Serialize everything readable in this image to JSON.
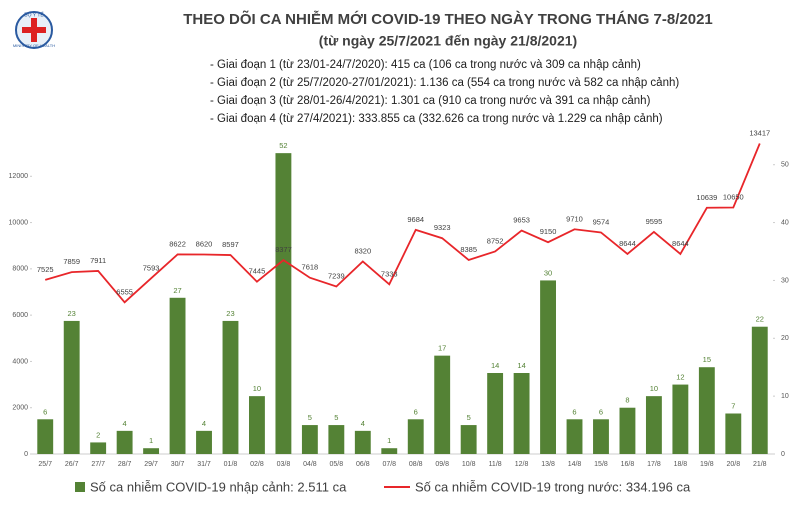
{
  "logo": {
    "top": "BỘ Y TẾ",
    "bottom": "MINISTRY OF HEALTH"
  },
  "chart_data": {
    "type": "combo",
    "title": "THEO DÕI CA NHIỄM MỚI COVID-19 THEO NGÀY TRONG THÁNG 7-8/2021",
    "subtitle": "(từ ngày 25/7/2021 đến ngày 21/8/2021)",
    "annotations": [
      "- Giai đoạn 1 (từ 23/01-24/7/2020): 415 ca (106 ca trong nước và 309 ca nhập cảnh)",
      "- Giai đoạn 2 (từ 25/7/2020-27/01/2021): 1.136 ca (554 ca trong nước và 582 ca nhập cảnh)",
      "- Giai đoạn 3 (từ 28/01-26/4/2021): 1.301 ca (910 ca trong nước và 391 ca nhập cảnh)",
      "- Giai đoạn 4 (từ 27/4/2021): 333.855 ca (332.626 ca trong nước và 1.229 ca nhập cảnh)"
    ],
    "categories": [
      "25/7",
      "26/7",
      "27/7",
      "28/7",
      "29/7",
      "30/7",
      "31/7",
      "01/8",
      "02/8",
      "03/8",
      "04/8",
      "05/8",
      "06/8",
      "07/8",
      "08/8",
      "09/8",
      "10/8",
      "11/8",
      "12/8",
      "13/8",
      "14/8",
      "15/8",
      "16/8",
      "17/8",
      "18/8",
      "19/8",
      "20/8",
      "21/8"
    ],
    "series": [
      {
        "name": "Số ca nhiễm COVID-19 nhập cảnh: 2.511 ca",
        "type": "bar",
        "axis": "y2",
        "color": "#548235",
        "values": [
          6,
          23,
          2,
          4,
          1,
          27,
          4,
          23,
          10,
          52,
          5,
          5,
          4,
          1,
          6,
          17,
          5,
          14,
          14,
          30,
          6,
          6,
          8,
          10,
          12,
          15,
          7,
          22
        ]
      },
      {
        "name": "Số ca nhiễm COVID-19 trong nước: 334.196 ca",
        "type": "line",
        "color": "#e8262a",
        "values": [
          7525,
          7859,
          7911,
          6555,
          7593,
          8622,
          8620,
          8597,
          7445,
          8377,
          7618,
          7239,
          8320,
          7333,
          9684,
          9323,
          8385,
          8752,
          9653,
          9150,
          9710,
          9574,
          8644,
          9595,
          8644,
          10639,
          10650,
          13417
        ]
      }
    ],
    "ylim": [
      0,
      14000
    ],
    "yticks": [
      0,
      2000,
      4000,
      6000,
      8000,
      10000,
      12000
    ],
    "y2lim": [
      0,
      56
    ],
    "y2ticks": [
      0,
      10,
      20,
      30,
      40,
      50
    ]
  }
}
